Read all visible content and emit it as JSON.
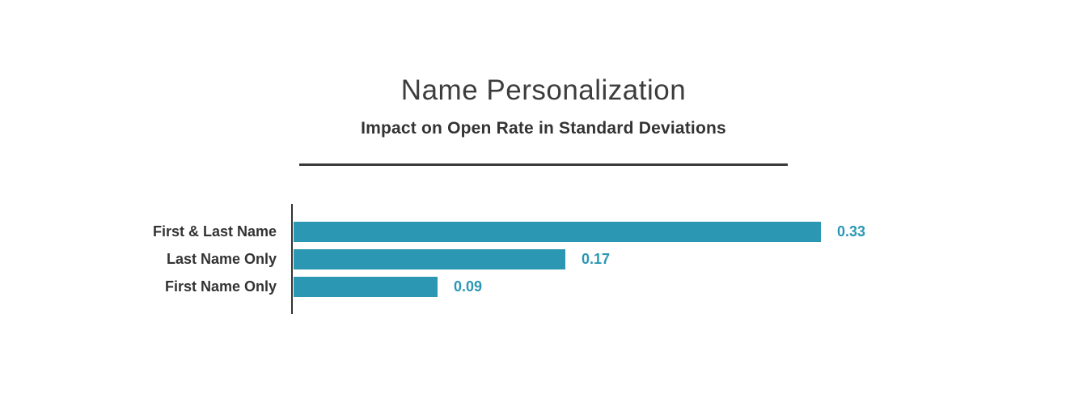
{
  "title": "Name Personalization",
  "subtitle": "Impact on Open Rate in Standard Deviations",
  "colors": {
    "bar": "#2B97B3",
    "value_label": "#2B97B3",
    "text": "#333333",
    "axis": "#333333",
    "divider": "#3a3a3a",
    "title_text": "#3d3d3d",
    "background": "#ffffff"
  },
  "chart_data": {
    "type": "bar",
    "orientation": "horizontal",
    "title": "Name Personalization",
    "subtitle": "Impact on Open Rate in Standard Deviations",
    "categories": [
      "First & Last Name",
      "Last Name Only",
      "First Name Only"
    ],
    "values": [
      0.33,
      0.17,
      0.09
    ],
    "value_labels": [
      "0.33",
      "0.17",
      "0.09"
    ],
    "xlabel": "",
    "ylabel": "",
    "xlim": [
      0,
      0.345
    ],
    "grid": false,
    "legend": "none",
    "value_label_position": "right-of-bar"
  }
}
